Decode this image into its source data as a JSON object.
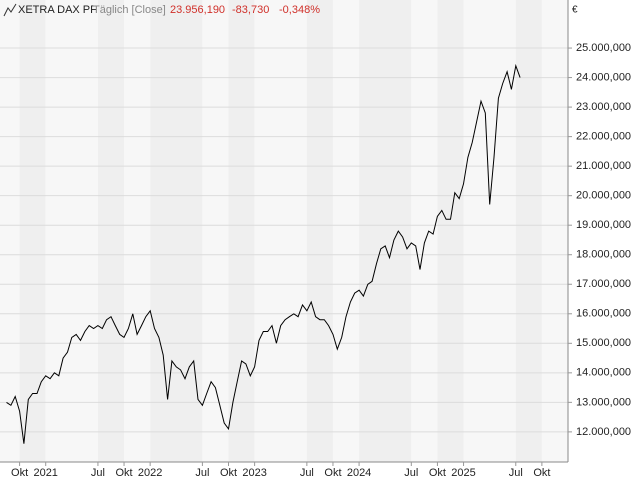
{
  "chart_data": {
    "type": "line",
    "title": "XETRA DAX PF",
    "subtitle": "Täglich [Close]",
    "last_price": "23.956,190",
    "change": "-83,730",
    "change_percent": "-0,348%",
    "currency": "€",
    "series": [
      {
        "color": "#000000",
        "values": [
          13000,
          12900,
          13200,
          12700,
          11600,
          13100,
          13300,
          13300,
          13700,
          13900,
          13800,
          14000,
          13900,
          14500,
          14700,
          15200,
          15300,
          15100,
          15400,
          15600,
          15500,
          15600,
          15500,
          15800,
          15900,
          15600,
          15300,
          15200,
          15500,
          16000,
          15300,
          15600,
          15900,
          16100,
          15500,
          15200,
          14600,
          13100,
          14400,
          14200,
          14100,
          13800,
          14200,
          14400,
          13100,
          12900,
          13300,
          13700,
          13500,
          12900,
          12300,
          12100,
          13000,
          13700,
          14400,
          14300,
          13900,
          14200,
          15100,
          15400,
          15400,
          15600,
          15000,
          15600,
          15800,
          15900,
          16000,
          15900,
          16300,
          16100,
          16400,
          15900,
          15800,
          15800,
          15600,
          15300,
          14800,
          15200,
          15900,
          16400,
          16700,
          16800,
          16600,
          17000,
          17100,
          17700,
          18200,
          18300,
          17900,
          18500,
          18800,
          18600,
          18200,
          18400,
          18300,
          17500,
          18400,
          18800,
          18700,
          19300,
          19500,
          19200,
          19200,
          20100,
          19900,
          20400,
          21300,
          21800,
          22500,
          23200,
          22800,
          19700,
          21300,
          23300,
          23800,
          24200,
          23600,
          24400,
          24000
        ]
      }
    ],
    "xlim": [
      -1.5,
      129
    ],
    "xticks": [
      {
        "value": 3,
        "label": "Okt"
      },
      {
        "value": 9,
        "label": "2021"
      },
      {
        "value": 21,
        "label": "Jul"
      },
      {
        "value": 27,
        "label": "Okt"
      },
      {
        "value": 33,
        "label": "2022"
      },
      {
        "value": 45,
        "label": "Jul"
      },
      {
        "value": 51,
        "label": "Okt"
      },
      {
        "value": 57,
        "label": "2023"
      },
      {
        "value": 69,
        "label": "Jul"
      },
      {
        "value": 75,
        "label": "Okt"
      },
      {
        "value": 81,
        "label": "2024"
      },
      {
        "value": 93,
        "label": "Jul"
      },
      {
        "value": 99,
        "label": "Okt"
      },
      {
        "value": 105,
        "label": "2025"
      },
      {
        "value": 117,
        "label": "Jul"
      },
      {
        "value": 123,
        "label": "Okt"
      }
    ],
    "ylim": [
      10980,
      25950
    ],
    "yticks": [
      {
        "value": 12000,
        "label": "12.000,000"
      },
      {
        "value": 13000,
        "label": "13.000,000"
      },
      {
        "value": 14000,
        "label": "14.000,000"
      },
      {
        "value": 15000,
        "label": "15.000,000"
      },
      {
        "value": 16000,
        "label": "16.000,000"
      },
      {
        "value": 17000,
        "label": "17.000,000"
      },
      {
        "value": 18000,
        "label": "18.000,000"
      },
      {
        "value": 19000,
        "label": "19.000,000"
      },
      {
        "value": 20000,
        "label": "20.000,000"
      },
      {
        "value": 21000,
        "label": "21.000,000"
      },
      {
        "value": 22000,
        "label": "22.000,000"
      },
      {
        "value": 23000,
        "label": "23.000,000"
      },
      {
        "value": 24000,
        "label": "24.000,000"
      },
      {
        "value": 25000,
        "label": "25.000,000"
      }
    ],
    "grid": true
  }
}
